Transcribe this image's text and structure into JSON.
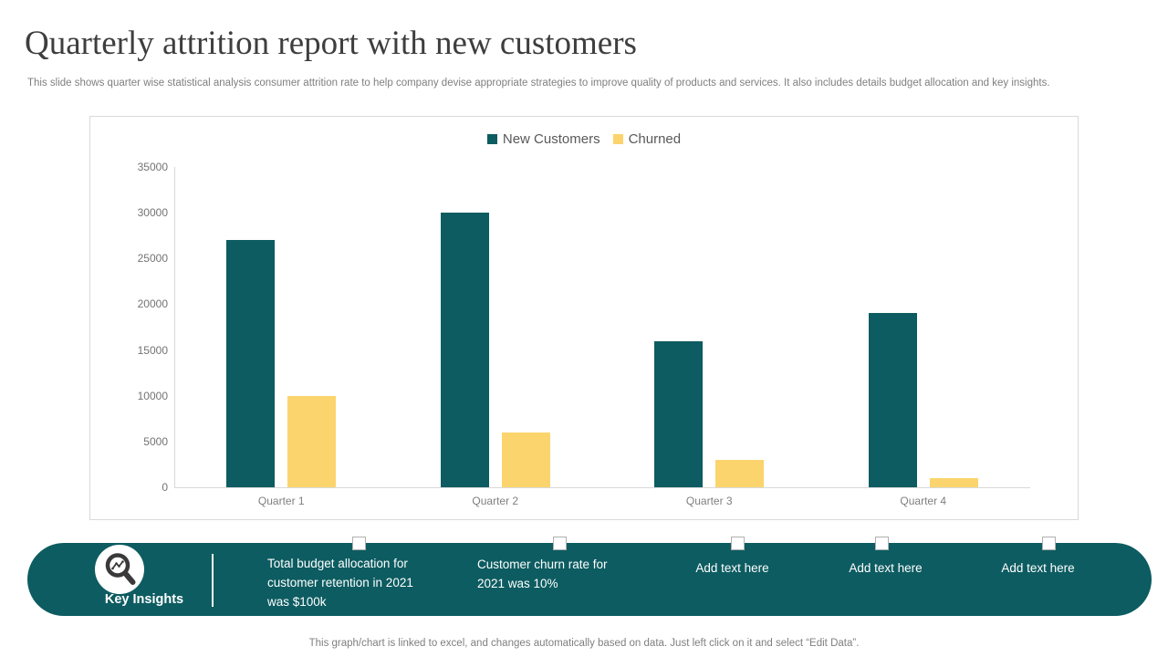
{
  "slide": {
    "title": "Quarterly attrition report with new customers",
    "subtitle": "This slide shows quarter wise statistical analysis consumer attrition rate to help company devise appropriate strategies to improve quality of products and services. It also includes details budget allocation  and key insights.",
    "footnote": "This graph/chart is linked to excel,  and changes automatically based on data. Just left click on it and select “Edit Data”."
  },
  "chart_data": {
    "type": "bar",
    "categories": [
      "Quarter 1",
      "Quarter 2",
      "Quarter 3",
      "Quarter 4"
    ],
    "series": [
      {
        "name": "New Customers",
        "color": "#0d5c61",
        "values": [
          27000,
          30000,
          16000,
          19000
        ]
      },
      {
        "name": "Churned",
        "color": "#fbd46d",
        "values": [
          10000,
          6000,
          3000,
          1000
        ]
      }
    ],
    "title": "",
    "xlabel": "",
    "ylabel": "",
    "ylim": [
      0,
      35000
    ],
    "ytick_step": 5000,
    "legend_position": "top",
    "grid": false
  },
  "key_insights": {
    "label": "Key Insights",
    "icon": "magnifier-chart-icon",
    "band_color": "#0d5c61",
    "items": [
      {
        "text": "Total budget allocation for customer retention in 2021 was $100k"
      },
      {
        "text": "Customer churn rate for 2021 was 10%"
      },
      {
        "text": "Add text here"
      },
      {
        "text": "Add text here"
      },
      {
        "text": "Add text here"
      }
    ]
  },
  "colors": {
    "accent_teal": "#0d5c61",
    "accent_yellow": "#fbd46d",
    "frame_border": "#d9d9d9",
    "muted_text": "#7f7f7f"
  }
}
